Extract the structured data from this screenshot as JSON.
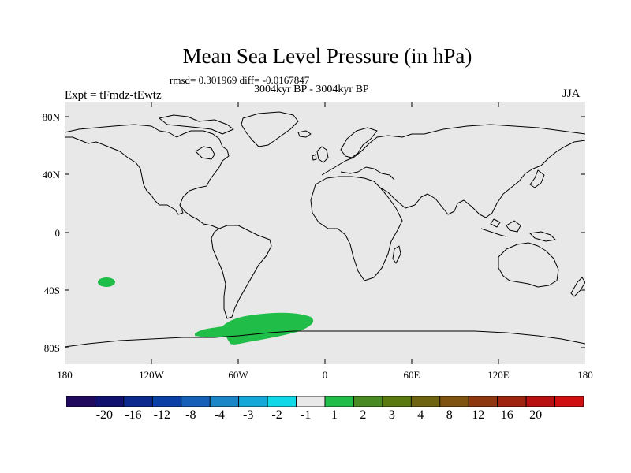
{
  "title": "Mean Sea Level Pressure (in hPa)",
  "stats": "rmsd= 0.301969 diff= -0.0167847",
  "period": "3004kyr BP - 3004kyr BP",
  "experiment": "Expt = tFmdz-tEwtz",
  "season": "JJA",
  "lat_labels": [
    "80N",
    "40N",
    "0",
    "40S",
    "80S"
  ],
  "lon_labels": [
    "180",
    "120W",
    "60W",
    "0",
    "60E",
    "120E",
    "180"
  ],
  "colorbar": {
    "colors": [
      "#200a5e",
      "#10106e",
      "#0c2a8e",
      "#0a3fa6",
      "#1660b8",
      "#1a86c8",
      "#14a8d8",
      "#10d8e8",
      "#e8e8e8",
      "#20be48",
      "#4a8a22",
      "#5a7a10",
      "#6e6410",
      "#7e5410",
      "#8e3810",
      "#9e2410",
      "#b81010",
      "#d01010"
    ],
    "labels": [
      "-20",
      "-16",
      "-12",
      "-8",
      "-4",
      "-3",
      "-2",
      "-1",
      "1",
      "2",
      "3",
      "4",
      "8",
      "12",
      "16",
      "20"
    ]
  },
  "map": {
    "ocean_color": "#e8e8e8",
    "anomaly_color": "#20be48"
  }
}
